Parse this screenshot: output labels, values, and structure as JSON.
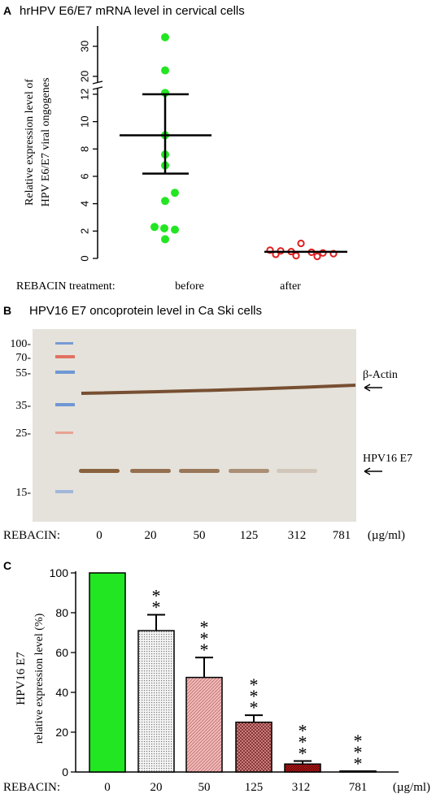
{
  "panel_a": {
    "letter": "A",
    "title": "hrHPV E6/E7 mRNA level in cervical cells",
    "ylabel_line1": "Relative expression level of",
    "ylabel_line2": "HPV E6/E7 viral ongogenes",
    "xprefix": "REBACIN treatment:",
    "colors": {
      "before": "#22e622",
      "after": "#e02020"
    }
  },
  "panel_b": {
    "letter": "B",
    "title": "HPV16 E7 oncoprotein level in Ca Ski cells",
    "markers": [
      "100-",
      "70-",
      "55-",
      "35-",
      "25-",
      "15-"
    ],
    "band_actin": "β-Actin",
    "band_e7": "HPV16 E7",
    "row_label": "REBACIN:",
    "lanes": [
      "0",
      "20",
      "50",
      "125",
      "312",
      "781"
    ],
    "unit": "(µg/ml)"
  },
  "panel_c": {
    "letter": "C",
    "ylabel_line1": "HPV16 E7",
    "ylabel_line2": "relative expression level (%)",
    "row_label": "REBACIN:",
    "unit": "(µg/ml)"
  },
  "chart_data": [
    {
      "type": "scatter",
      "y_ticks_lower": [
        "0",
        "2",
        "4",
        "6",
        "8",
        "10",
        "12"
      ],
      "y_ticks_upper": [
        "20",
        "30"
      ],
      "y_axis_break": [
        12.5,
        18
      ],
      "categories": [
        "before",
        "after"
      ],
      "series": [
        {
          "name": "before",
          "values": [
            33,
            22,
            12.1,
            9.0,
            7.6,
            6.8,
            4.8,
            4.2,
            2.3,
            2.2,
            2.1,
            1.4
          ],
          "mean": 9.0,
          "error_high": 12.0,
          "error_low": 6.2
        },
        {
          "name": "after",
          "values": [
            1.1,
            0.6,
            0.55,
            0.5,
            0.45,
            0.4,
            0.35,
            0.3,
            0.2,
            0.15
          ],
          "mean": 0.48
        }
      ]
    },
    {
      "type": "bar",
      "categories": [
        "0",
        "20",
        "50",
        "125",
        "312",
        "781"
      ],
      "values": [
        100,
        71,
        47.5,
        25,
        4,
        0.5
      ],
      "errors": [
        0,
        8,
        10,
        3.5,
        1.5,
        0
      ],
      "significance": [
        "",
        "**",
        "***",
        "***",
        "***",
        "***"
      ],
      "y_ticks": [
        "0",
        "20",
        "40",
        "60",
        "80",
        "100"
      ],
      "ylim": [
        0,
        100
      ]
    }
  ]
}
